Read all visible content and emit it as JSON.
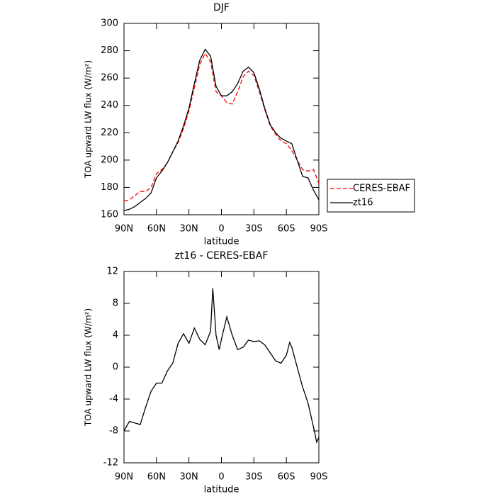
{
  "chart_data": [
    {
      "type": "line",
      "title": "DJF",
      "x_label": "latitude",
      "y_label": "TOA upward LW flux (W/m²)",
      "x": [
        90,
        85,
        80,
        75,
        70,
        65,
        60,
        55,
        50,
        45,
        40,
        35,
        30,
        25,
        20,
        15,
        10,
        5,
        0,
        -5,
        -10,
        -15,
        -20,
        -25,
        -30,
        -35,
        -40,
        -45,
        -50,
        -55,
        -60,
        -65,
        -70,
        -75,
        -80,
        -85,
        -90
      ],
      "series": [
        {
          "name": "CERES-EBAF",
          "color": "#ff0000",
          "dashed": true,
          "values": [
            170,
            171,
            174,
            177,
            177,
            180,
            190,
            193,
            198,
            206,
            213,
            223,
            236,
            253,
            270,
            278,
            272,
            250,
            247,
            242,
            241,
            250,
            261,
            265,
            262,
            250,
            237,
            225,
            219,
            214,
            212,
            207,
            200,
            193,
            192,
            193,
            183
          ]
        },
        {
          "name": "zt16",
          "color": "#000000",
          "dashed": false,
          "values": [
            163,
            164,
            166,
            169,
            172,
            176,
            187,
            192,
            198,
            206,
            214,
            225,
            238,
            256,
            273,
            281,
            276,
            254,
            247,
            247,
            250,
            256,
            265,
            268,
            264,
            252,
            238,
            226,
            220,
            216,
            214,
            212,
            200,
            188,
            187,
            178,
            171
          ]
        }
      ],
      "xlim": [
        90,
        -90
      ],
      "xticks": [
        {
          "value": 90,
          "label": "90N"
        },
        {
          "value": 60,
          "label": "60N"
        },
        {
          "value": 30,
          "label": "30N"
        },
        0,
        {
          "value": -30,
          "label": "30S"
        },
        {
          "value": -60,
          "label": "60S"
        },
        {
          "value": -90,
          "label": "90S"
        }
      ],
      "ylim": [
        160,
        300
      ],
      "yticks": [
        160,
        180,
        200,
        220,
        240,
        260,
        280,
        300
      ],
      "legend": "right"
    },
    {
      "type": "line",
      "title": "zt16 - CERES-EBAF",
      "x_label": "latitude",
      "y_label": "TOA upward LW flux (W/m²)",
      "x": [
        90,
        85,
        80,
        75,
        70,
        65,
        60,
        55,
        50,
        45,
        40,
        35,
        30,
        25,
        20,
        15,
        10,
        8,
        5,
        2,
        0,
        -5,
        -10,
        -15,
        -20,
        -25,
        -30,
        -35,
        -40,
        -45,
        -50,
        -55,
        -60,
        -63,
        -65,
        -70,
        -75,
        -80,
        -85,
        -88,
        -90
      ],
      "values": [
        -8,
        -6.8,
        -7,
        -7.2,
        -5,
        -3,
        -2,
        -2,
        -0.5,
        0.5,
        3,
        4.2,
        3,
        4.9,
        3.5,
        2.8,
        4.5,
        9.9,
        4,
        2.2,
        3.5,
        6.3,
        4,
        2.2,
        2.5,
        3.4,
        3.2,
        3.3,
        2.8,
        1.8,
        0.8,
        0.5,
        1.5,
        3.1,
        2.5,
        0,
        -2.5,
        -4.5,
        -7.5,
        -9.4,
        -8.8
      ],
      "color": "#000000",
      "xlim": [
        90,
        -90
      ],
      "xticks": [
        {
          "value": 90,
          "label": "90N"
        },
        {
          "value": 60,
          "label": "60N"
        },
        {
          "value": 30,
          "label": "30N"
        },
        0,
        {
          "value": -30,
          "label": "30S"
        },
        {
          "value": -60,
          "label": "60S"
        },
        {
          "value": -90,
          "label": "90S"
        }
      ],
      "ylim": [
        -12,
        12
      ],
      "yticks": [
        -12,
        -8,
        -4,
        0,
        4,
        8,
        12
      ]
    }
  ]
}
